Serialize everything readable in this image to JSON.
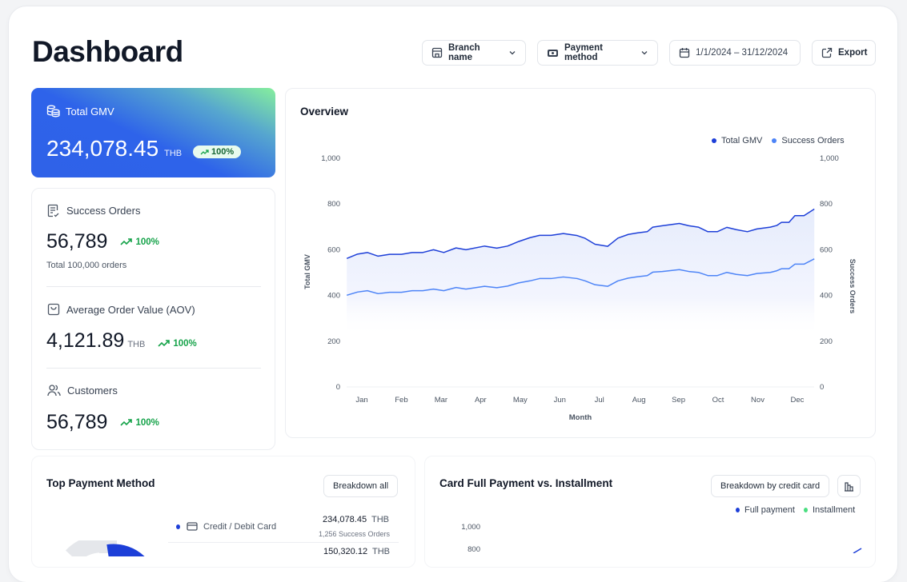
{
  "header": {
    "title": "Dashboard",
    "branch": "Branch name",
    "payment": "Payment method",
    "date_range": "1/1/2024 – 31/12/2024",
    "export": "Export"
  },
  "kpis": {
    "gmv": {
      "label": "Total GMV",
      "value": "234,078.45",
      "unit": "THB",
      "change": "100%"
    },
    "orders": {
      "label": "Success Orders",
      "value": "56,789",
      "change": "100%",
      "sub": "Total 100,000 orders"
    },
    "aov": {
      "label": "Average Order Value (AOV)",
      "value": "4,121.89",
      "unit": "THB",
      "change": "100%"
    },
    "customers": {
      "label": "Customers",
      "value": "56,789",
      "change": "100%"
    }
  },
  "overview": {
    "title": "Overview"
  },
  "chart_data": {
    "type": "line",
    "title": "Overview",
    "xlabel": "Month",
    "ylabel": "Total GMV",
    "y2label": "Success Orders",
    "ylim": [
      0,
      1000
    ],
    "y2lim": [
      0,
      1000
    ],
    "yticks": [
      "0",
      "200",
      "400",
      "600",
      "800",
      "1,000"
    ],
    "categories": [
      "Jan",
      "Feb",
      "Mar",
      "Apr",
      "May",
      "Jun",
      "Jul",
      "Aug",
      "Sep",
      "Oct",
      "Nov",
      "Dec"
    ],
    "legend_position": "top-right",
    "x": [
      0.62,
      0.89,
      1.14,
      1.41,
      1.7,
      2.0,
      2.27,
      2.54,
      2.81,
      3.07,
      3.38,
      3.63,
      4.1,
      4.41,
      4.68,
      4.96,
      5.25,
      5.49,
      5.78,
      6.09,
      6.44,
      6.64,
      6.89,
      7.21,
      7.47,
      7.73,
      7.97,
      8.21,
      8.35,
      8.59,
      9.02,
      9.26,
      9.5,
      9.74,
      9.98,
      10.22,
      10.46,
      10.74,
      10.98,
      11.32,
      11.48,
      11.6,
      11.79,
      11.94,
      12.17,
      12.43
    ],
    "series": [
      {
        "name": "Total GMV",
        "color": "#1d3fd8",
        "values": [
          562,
          581,
          588,
          572,
          580,
          580,
          588,
          588,
          600,
          588,
          608,
          600,
          616,
          607,
          616,
          636,
          653,
          663,
          663,
          671,
          662,
          650,
          624,
          615,
          651,
          667,
          674,
          679,
          699,
          705,
          715,
          705,
          699,
          679,
          679,
          698,
          688,
          679,
          691,
          699,
          706,
          720,
          720,
          749,
          749,
          778
        ]
      },
      {
        "name": "Success Orders",
        "color": "#4d84f7",
        "values": [
          401,
          415,
          421,
          408,
          414,
          414,
          421,
          421,
          428,
          421,
          435,
          428,
          440,
          434,
          441,
          455,
          464,
          474,
          474,
          481,
          474,
          464,
          447,
          440,
          464,
          476,
          482,
          487,
          502,
          505,
          513,
          505,
          501,
          487,
          487,
          501,
          492,
          487,
          496,
          501,
          508,
          517,
          517,
          537,
          537,
          560
        ]
      }
    ]
  },
  "payment_section": {
    "title": "Top Payment Method",
    "breakdown": "Breakdown all",
    "rows": [
      {
        "label": "Credit / Debit Card",
        "amount": "234,078.45",
        "unit": "THB",
        "orders": "1,256 Success Orders"
      },
      {
        "amount": "150,320.12",
        "unit": "THB"
      }
    ]
  },
  "card_section": {
    "title": "Card Full Payment vs. Installment",
    "breakdown": "Breakdown by credit card",
    "legend": [
      "Full payment",
      "Installment"
    ],
    "yticks": [
      "1,000",
      "800"
    ]
  }
}
